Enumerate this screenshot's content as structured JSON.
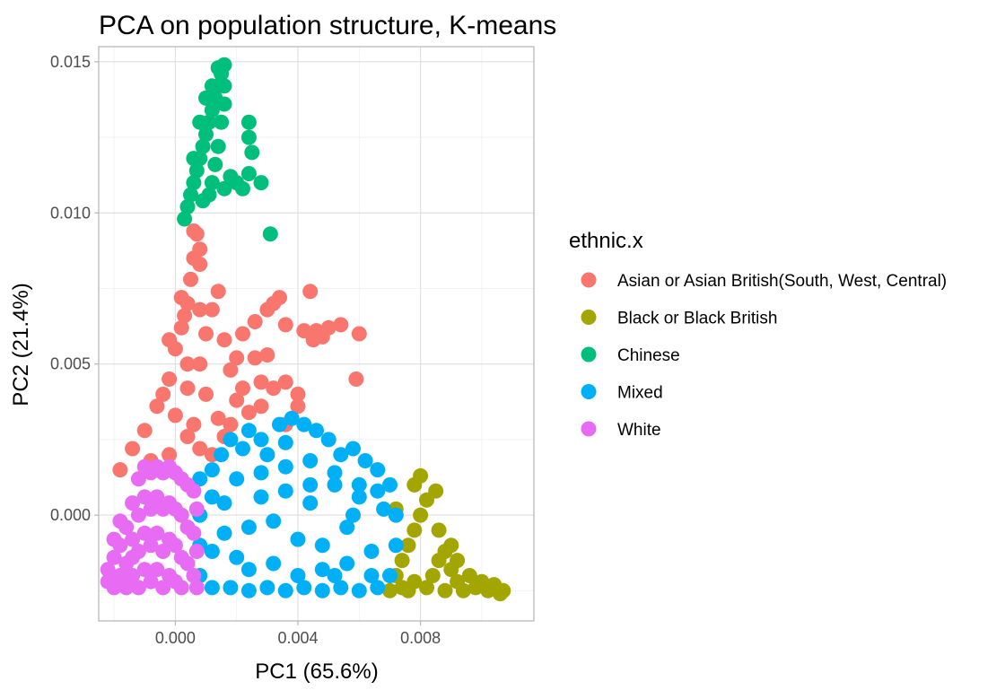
{
  "chart_data": {
    "type": "scatter",
    "title": "PCA on population structure, K-means",
    "xlabel": "PC1 (65.6%)",
    "ylabel": "PC2 (21.4%)",
    "xlim": [
      -0.0025,
      0.0117
    ],
    "ylim": [
      -0.0035,
      0.0155
    ],
    "x_ticks": [
      0.0,
      0.004,
      0.008
    ],
    "x_tick_labels": [
      "0.000",
      "0.004",
      "0.008"
    ],
    "y_ticks": [
      0.0,
      0.005,
      0.01,
      0.015
    ],
    "y_tick_labels": [
      "0.000",
      "0.005",
      "0.010",
      "0.015"
    ],
    "grid": true,
    "legend": {
      "title": "ethnic.x",
      "position": "right"
    },
    "series": [
      {
        "name": "Asian or Asian British(South, West, Central)",
        "color": "#F8766D",
        "points": [
          [
            -0.0018,
            0.0015
          ],
          [
            -0.0014,
            0.0022
          ],
          [
            -0.001,
            0.0028
          ],
          [
            -0.0006,
            0.0036
          ],
          [
            -0.0002,
            0.0045
          ],
          [
            0.0,
            0.0055
          ],
          [
            0.0002,
            0.0062
          ],
          [
            0.0004,
            0.007
          ],
          [
            0.0005,
            0.0078
          ],
          [
            0.0006,
            0.0085
          ],
          [
            0.0006,
            0.0094
          ],
          [
            0.0008,
            0.0083
          ],
          [
            0.0008,
            0.0088
          ],
          [
            0.0007,
            0.0093
          ],
          [
            -0.0004,
            0.004
          ],
          [
            0.0,
            0.0033
          ],
          [
            0.0004,
            0.0042
          ],
          [
            0.0008,
            0.005
          ],
          [
            0.001,
            0.006
          ],
          [
            0.0012,
            0.0068
          ],
          [
            0.0014,
            0.0074
          ],
          [
            0.001,
            0.004
          ],
          [
            0.0014,
            0.0032
          ],
          [
            0.0018,
            0.0048
          ],
          [
            0.0022,
            0.006
          ],
          [
            0.0026,
            0.0064
          ],
          [
            0.003,
            0.0068
          ],
          [
            0.0032,
            0.007
          ],
          [
            0.0034,
            0.0072
          ],
          [
            0.0026,
            0.0052
          ],
          [
            0.003,
            0.0053
          ],
          [
            0.0032,
            0.0042
          ],
          [
            0.0036,
            0.0044
          ],
          [
            0.004,
            0.004
          ],
          [
            0.0042,
            0.0061
          ],
          [
            0.0045,
            0.0058
          ],
          [
            0.0048,
            0.0059
          ],
          [
            0.005,
            0.0062
          ],
          [
            0.0044,
            0.0074
          ],
          [
            0.0046,
            0.0061
          ],
          [
            0.0036,
            0.0063
          ],
          [
            0.0059,
            0.0045
          ],
          [
            0.0054,
            0.0063
          ],
          [
            0.006,
            0.006
          ],
          [
            0.002,
            0.0038
          ],
          [
            0.0024,
            0.0034
          ],
          [
            0.0016,
            0.0026
          ],
          [
            0.0008,
            0.0022
          ],
          [
            0.0004,
            0.0026
          ],
          [
            -0.0002,
            0.002
          ],
          [
            -0.0008,
            0.0018
          ],
          [
            0.0012,
            0.002
          ],
          [
            0.0018,
            0.003
          ],
          [
            0.0028,
            0.0036
          ],
          [
            0.0036,
            0.003
          ],
          [
            0.004,
            0.0036
          ],
          [
            0.0002,
            0.0072
          ],
          [
            0.0003,
            0.0066
          ],
          [
            -0.0002,
            0.0058
          ],
          [
            0.0004,
            0.005
          ],
          [
            0.0016,
            0.0058
          ],
          [
            0.002,
            0.0052
          ],
          [
            0.0008,
            0.0068
          ],
          [
            0.0006,
            0.003
          ],
          [
            0.0028,
            0.0044
          ],
          [
            0.0022,
            0.0042
          ]
        ]
      },
      {
        "name": "Black or Black British",
        "color": "#A3A500",
        "points": [
          [
            0.007,
            -0.0025
          ],
          [
            0.0072,
            -0.002
          ],
          [
            0.0074,
            -0.0015
          ],
          [
            0.0076,
            -0.001
          ],
          [
            0.0078,
            -0.0005
          ],
          [
            0.008,
            0.0
          ],
          [
            0.0082,
            0.0005
          ],
          [
            0.008,
            0.0013
          ],
          [
            0.0085,
            0.0008
          ],
          [
            0.0086,
            -0.0005
          ],
          [
            0.0088,
            -0.0012
          ],
          [
            0.009,
            -0.0018
          ],
          [
            0.0092,
            -0.0022
          ],
          [
            0.0094,
            -0.0025
          ],
          [
            0.0096,
            -0.002
          ],
          [
            0.0098,
            -0.0024
          ],
          [
            0.01,
            -0.0022
          ],
          [
            0.0102,
            -0.0025
          ],
          [
            0.0104,
            -0.0023
          ],
          [
            0.0106,
            -0.0026
          ],
          [
            0.0107,
            -0.0025
          ],
          [
            0.0084,
            -0.002
          ],
          [
            0.0082,
            -0.0024
          ],
          [
            0.0078,
            -0.0022
          ],
          [
            0.0076,
            -0.0025
          ],
          [
            0.0074,
            -0.0024
          ],
          [
            0.0086,
            -0.0015
          ],
          [
            0.009,
            -0.001
          ],
          [
            0.0078,
            0.001
          ],
          [
            0.0072,
            0.0002
          ],
          [
            0.0088,
            -0.0025
          ],
          [
            0.0092,
            -0.0015
          ]
        ]
      },
      {
        "name": "Chinese",
        "color": "#00BF7D",
        "points": [
          [
            0.0003,
            0.0098
          ],
          [
            0.0004,
            0.0102
          ],
          [
            0.0005,
            0.0106
          ],
          [
            0.0006,
            0.011
          ],
          [
            0.0007,
            0.0114
          ],
          [
            0.0008,
            0.0118
          ],
          [
            0.0009,
            0.0122
          ],
          [
            0.001,
            0.0126
          ],
          [
            0.0011,
            0.013
          ],
          [
            0.0012,
            0.0134
          ],
          [
            0.0013,
            0.0138
          ],
          [
            0.0014,
            0.0142
          ],
          [
            0.0015,
            0.0146
          ],
          [
            0.0016,
            0.0149
          ],
          [
            0.0014,
            0.0148
          ],
          [
            0.0012,
            0.0142
          ],
          [
            0.001,
            0.0138
          ],
          [
            0.0008,
            0.013
          ],
          [
            0.0006,
            0.0118
          ],
          [
            0.0016,
            0.0142
          ],
          [
            0.0016,
            0.0136
          ],
          [
            0.0015,
            0.013
          ],
          [
            0.0014,
            0.0122
          ],
          [
            0.0013,
            0.0116
          ],
          [
            0.0012,
            0.011
          ],
          [
            0.0011,
            0.0106
          ],
          [
            0.0018,
            0.0112
          ],
          [
            0.002,
            0.011
          ],
          [
            0.0022,
            0.0108
          ],
          [
            0.0024,
            0.0113
          ],
          [
            0.0028,
            0.011
          ],
          [
            0.0024,
            0.0125
          ],
          [
            0.0024,
            0.013
          ],
          [
            0.0025,
            0.012
          ],
          [
            0.0031,
            0.0093
          ],
          [
            0.0016,
            0.0108
          ],
          [
            0.0009,
            0.0104
          ]
        ]
      },
      {
        "name": "Mixed",
        "color": "#00B0F6",
        "points": [
          [
            0.0008,
            -0.002
          ],
          [
            0.0008,
            -0.001
          ],
          [
            0.0008,
            0.0
          ],
          [
            0.0008,
            0.0012
          ],
          [
            0.0012,
            0.0015
          ],
          [
            0.0015,
            0.002
          ],
          [
            0.0018,
            0.0025
          ],
          [
            0.0022,
            0.0022
          ],
          [
            0.0024,
            0.0028
          ],
          [
            0.0028,
            0.0025
          ],
          [
            0.003,
            0.002
          ],
          [
            0.0034,
            0.003
          ],
          [
            0.0038,
            0.0032
          ],
          [
            0.0042,
            0.003
          ],
          [
            0.0046,
            0.0028
          ],
          [
            0.005,
            0.0025
          ],
          [
            0.0054,
            0.002
          ],
          [
            0.0058,
            0.0022
          ],
          [
            0.0062,
            0.0018
          ],
          [
            0.0066,
            0.0015
          ],
          [
            0.007,
            0.001
          ],
          [
            0.0072,
            0.0
          ],
          [
            0.0072,
            -0.001
          ],
          [
            0.007,
            -0.002
          ],
          [
            0.0066,
            -0.0024
          ],
          [
            0.006,
            -0.0025
          ],
          [
            0.0054,
            -0.0024
          ],
          [
            0.0048,
            -0.0025
          ],
          [
            0.0042,
            -0.0024
          ],
          [
            0.0036,
            -0.0025
          ],
          [
            0.003,
            -0.0024
          ],
          [
            0.0024,
            -0.0025
          ],
          [
            0.0018,
            -0.0024
          ],
          [
            0.0012,
            -0.0024
          ],
          [
            0.0012,
            -0.0012
          ],
          [
            0.0016,
            -0.0006
          ],
          [
            0.002,
            -0.0014
          ],
          [
            0.0024,
            -0.0004
          ],
          [
            0.0028,
            0.0006
          ],
          [
            0.0032,
            -0.0002
          ],
          [
            0.0036,
            0.0008
          ],
          [
            0.004,
            -0.0008
          ],
          [
            0.0044,
            0.0004
          ],
          [
            0.0048,
            -0.001
          ],
          [
            0.0052,
            0.001
          ],
          [
            0.0056,
            -0.0004
          ],
          [
            0.006,
            0.0006
          ],
          [
            0.0064,
            -0.0012
          ],
          [
            0.0068,
            0.0002
          ],
          [
            0.002,
            0.0012
          ],
          [
            0.0028,
            0.0014
          ],
          [
            0.0036,
            0.0016
          ],
          [
            0.0044,
            0.0018
          ],
          [
            0.0052,
            0.0014
          ],
          [
            0.006,
            0.001
          ],
          [
            0.0016,
            0.0004
          ],
          [
            0.0024,
            -0.0018
          ],
          [
            0.0032,
            -0.0016
          ],
          [
            0.004,
            -0.002
          ],
          [
            0.0048,
            -0.0018
          ],
          [
            0.0056,
            -0.0016
          ],
          [
            0.0064,
            -0.002
          ],
          [
            0.0012,
            0.0006
          ],
          [
            0.0036,
            0.0024
          ],
          [
            0.0044,
            0.001
          ],
          [
            0.0052,
            -0.002
          ],
          [
            0.0058,
            0.0
          ],
          [
            0.0066,
            0.0008
          ]
        ]
      },
      {
        "name": "White",
        "color": "#E76BF3",
        "points": [
          [
            -0.0022,
            -0.0018
          ],
          [
            -0.0022,
            -0.0022
          ],
          [
            -0.002,
            -0.0014
          ],
          [
            -0.002,
            -0.0024
          ],
          [
            -0.0018,
            -0.001
          ],
          [
            -0.0018,
            -0.002
          ],
          [
            -0.0016,
            -0.0004
          ],
          [
            -0.0016,
            -0.0016
          ],
          [
            -0.0016,
            -0.0024
          ],
          [
            -0.0014,
            0.0004
          ],
          [
            -0.0014,
            -0.0008
          ],
          [
            -0.0014,
            -0.002
          ],
          [
            -0.0012,
            0.0012
          ],
          [
            -0.0012,
            0.0
          ],
          [
            -0.0012,
            -0.0012
          ],
          [
            -0.0012,
            -0.0024
          ],
          [
            -0.001,
            0.0016
          ],
          [
            -0.001,
            0.0006
          ],
          [
            -0.001,
            -0.0006
          ],
          [
            -0.001,
            -0.0018
          ],
          [
            -0.0008,
            0.0014
          ],
          [
            -0.0008,
            0.0002
          ],
          [
            -0.0008,
            -0.001
          ],
          [
            -0.0008,
            -0.0022
          ],
          [
            -0.0006,
            0.0016
          ],
          [
            -0.0006,
            0.0006
          ],
          [
            -0.0006,
            -0.0006
          ],
          [
            -0.0006,
            -0.0018
          ],
          [
            -0.0004,
            0.0014
          ],
          [
            -0.0004,
            0.0002
          ],
          [
            -0.0004,
            -0.0012
          ],
          [
            -0.0004,
            -0.0024
          ],
          [
            -0.0002,
            0.0016
          ],
          [
            -0.0002,
            0.0004
          ],
          [
            -0.0002,
            -0.0008
          ],
          [
            -0.0002,
            -0.002
          ],
          [
            0.0,
            0.0014
          ],
          [
            0.0,
            0.0002
          ],
          [
            0.0,
            -0.001
          ],
          [
            0.0,
            -0.0022
          ],
          [
            0.0002,
            0.0012
          ],
          [
            0.0002,
            0.0
          ],
          [
            0.0002,
            -0.0014
          ],
          [
            0.0002,
            -0.0024
          ],
          [
            0.0004,
            0.001
          ],
          [
            0.0004,
            -0.0004
          ],
          [
            0.0004,
            -0.0016
          ],
          [
            0.0006,
            0.0008
          ],
          [
            0.0006,
            -0.0006
          ],
          [
            0.0006,
            -0.002
          ],
          [
            0.0007,
            0.0002
          ],
          [
            0.0007,
            -0.0012
          ],
          [
            0.0007,
            -0.0024
          ],
          [
            -0.0018,
            -0.0002
          ],
          [
            -0.0014,
            -0.0014
          ],
          [
            -0.002,
            -0.0008
          ]
        ]
      }
    ]
  }
}
